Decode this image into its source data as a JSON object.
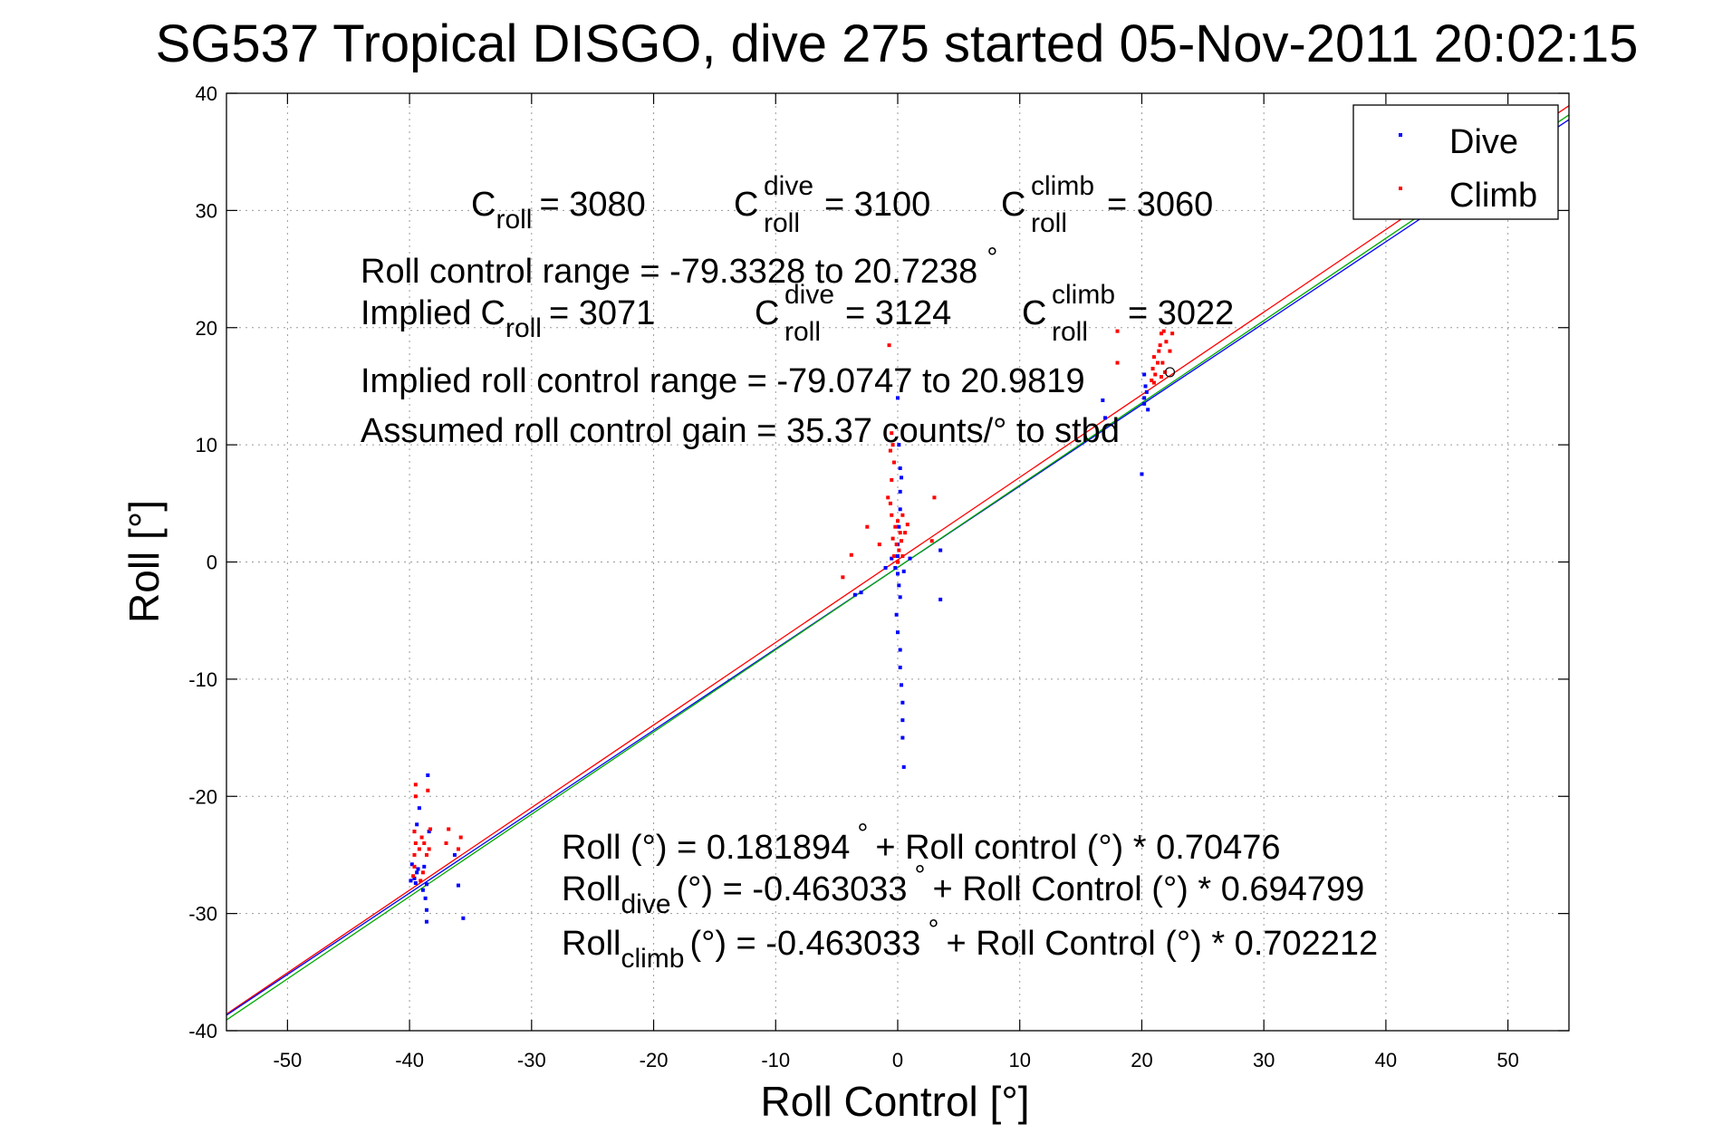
{
  "chart_data": {
    "type": "scatter",
    "title": "SG537 Tropical DISGO, dive 275 started 05-Nov-2011 20:02:15",
    "xlabel": "Roll Control [°]",
    "ylabel": "Roll [°]",
    "xlim": [
      -55,
      55
    ],
    "ylim": [
      -40,
      40
    ],
    "x_ticks": [
      -50,
      -40,
      -30,
      -20,
      -10,
      0,
      10,
      20,
      30,
      40,
      50
    ],
    "y_ticks": [
      -40,
      -30,
      -20,
      -10,
      0,
      10,
      20,
      30,
      40
    ],
    "grid": true,
    "legend_position": "top-right",
    "colors": {
      "dive": "#0000ff",
      "climb": "#ff0000",
      "fit": "#00aa00"
    },
    "series": [
      {
        "name": "Dive",
        "color": "#0000ff",
        "points": [
          [
            -39.6,
            -27.0
          ],
          [
            -39.4,
            -26.5
          ],
          [
            -39.5,
            -27.4
          ],
          [
            -39.3,
            -26.2
          ],
          [
            -39.8,
            -25.8
          ],
          [
            -39.6,
            -23.0
          ],
          [
            -39.4,
            -22.4
          ],
          [
            -39.2,
            -21.0
          ],
          [
            -38.9,
            -28.0
          ],
          [
            -38.7,
            -28.7
          ],
          [
            -38.6,
            -29.7
          ],
          [
            -38.6,
            -30.7
          ],
          [
            -38.6,
            -27.5
          ],
          [
            -38.4,
            -23.0
          ],
          [
            -38.5,
            -18.2
          ],
          [
            -38.8,
            -26.0
          ],
          [
            -36.3,
            -25.0
          ],
          [
            -36.0,
            -27.6
          ],
          [
            -35.6,
            -30.4
          ],
          [
            -39.9,
            -27.2
          ],
          [
            0.0,
            14.0
          ],
          [
            0.1,
            10.0
          ],
          [
            0.2,
            8.0
          ],
          [
            0.3,
            7.2
          ],
          [
            0.2,
            6.0
          ],
          [
            0.2,
            4.5
          ],
          [
            0.1,
            3.0
          ],
          [
            0.0,
            1.5
          ],
          [
            0.0,
            0.5
          ],
          [
            -0.2,
            -0.5
          ],
          [
            0.0,
            -1.0
          ],
          [
            0.1,
            -2.0
          ],
          [
            0.2,
            -3.0
          ],
          [
            -0.1,
            -4.5
          ],
          [
            0.0,
            -6.0
          ],
          [
            0.2,
            -7.5
          ],
          [
            0.2,
            -9.0
          ],
          [
            0.3,
            -10.5
          ],
          [
            0.4,
            -12.0
          ],
          [
            0.4,
            -13.5
          ],
          [
            0.4,
            -15.0
          ],
          [
            0.5,
            -17.5
          ],
          [
            -0.5,
            0.3
          ],
          [
            0.5,
            -0.8
          ],
          [
            -3.5,
            -2.8
          ],
          [
            -3.0,
            -2.6
          ],
          [
            3.5,
            1.0
          ],
          [
            3.5,
            -3.2
          ],
          [
            -1.0,
            -0.5
          ],
          [
            1.0,
            0.3
          ],
          [
            16.8,
            13.8
          ],
          [
            17.0,
            12.3
          ],
          [
            20.2,
            13.5
          ],
          [
            20.2,
            14.0
          ],
          [
            20.3,
            15.0
          ],
          [
            20.2,
            16.0
          ],
          [
            20.4,
            14.5
          ],
          [
            20.0,
            7.5
          ],
          [
            20.5,
            13.0
          ]
        ]
      },
      {
        "name": "Climb",
        "color": "#ff0000",
        "points": [
          [
            -39.5,
            -19.0
          ],
          [
            -39.5,
            -20.0
          ],
          [
            -39.6,
            -23.0
          ],
          [
            -39.5,
            -24.0
          ],
          [
            -39.6,
            -25.0
          ],
          [
            -39.6,
            -26.0
          ],
          [
            -39.7,
            -26.8
          ],
          [
            -39.2,
            -24.5
          ],
          [
            -39.0,
            -23.5
          ],
          [
            -38.8,
            -24.0
          ],
          [
            -38.6,
            -25.0
          ],
          [
            -38.5,
            -19.5
          ],
          [
            -38.4,
            -24.5
          ],
          [
            -38.3,
            -22.8
          ],
          [
            -37.0,
            -24.0
          ],
          [
            -36.8,
            -22.8
          ],
          [
            -36.0,
            -24.5
          ],
          [
            -35.8,
            -23.5
          ],
          [
            -38.9,
            -26.5
          ],
          [
            -39.1,
            -27.2
          ],
          [
            -0.7,
            18.5
          ],
          [
            -0.5,
            11.0
          ],
          [
            -0.4,
            10.0
          ],
          [
            -0.3,
            8.5
          ],
          [
            -0.5,
            7.0
          ],
          [
            -0.6,
            5.0
          ],
          [
            -0.5,
            4.0
          ],
          [
            0.0,
            3.5
          ],
          [
            -0.2,
            3.0
          ],
          [
            0.2,
            2.5
          ],
          [
            -0.4,
            2.0
          ],
          [
            0.3,
            1.8
          ],
          [
            -0.1,
            1.5
          ],
          [
            0.1,
            1.0
          ],
          [
            -0.3,
            0.5
          ],
          [
            0.0,
            0.0
          ],
          [
            0.4,
            0.5
          ],
          [
            0.6,
            2.5
          ],
          [
            0.8,
            3.2
          ],
          [
            -1.5,
            1.5
          ],
          [
            -3.8,
            0.6
          ],
          [
            -4.5,
            -1.3
          ],
          [
            2.8,
            1.8
          ],
          [
            3.0,
            5.5
          ],
          [
            -0.8,
            5.5
          ],
          [
            -0.6,
            9.5
          ],
          [
            0.4,
            4.0
          ],
          [
            -2.5,
            3.0
          ],
          [
            18.0,
            19.7
          ],
          [
            18.0,
            17.0
          ],
          [
            20.8,
            15.5
          ],
          [
            20.9,
            16.5
          ],
          [
            21.0,
            17.5
          ],
          [
            21.1,
            16.0
          ],
          [
            21.3,
            17.0
          ],
          [
            21.4,
            18.0
          ],
          [
            21.5,
            18.5
          ],
          [
            21.6,
            19.5
          ],
          [
            21.8,
            19.7
          ],
          [
            21.7,
            17.0
          ],
          [
            21.9,
            16.2
          ],
          [
            21.6,
            15.8
          ],
          [
            21.0,
            15.3
          ],
          [
            22.3,
            18.0
          ],
          [
            22.5,
            19.5
          ],
          [
            22.0,
            18.8
          ]
        ]
      }
    ],
    "fit_lines": [
      {
        "name": "Roll fit",
        "color": "#ff0000",
        "intercept": 0.181894,
        "slope": 0.70476
      },
      {
        "name": "Dive fit",
        "color": "#0000ff",
        "intercept": -0.463033,
        "slope": 0.694799
      },
      {
        "name": "Climb fit",
        "color": "#00aa00",
        "intercept": -0.463033,
        "slope": 0.702212
      }
    ],
    "marker_point": [
      22.3,
      16.2
    ],
    "annotations": {
      "c_roll_value": "= 3080",
      "c_dive_value": "= 3100",
      "c_climb_value": "= 3060",
      "roll_range": "Roll control range = -79.3328 to 20.7238",
      "implied_c_roll_value": "= 3071",
      "implied_c_dive_value": "= 3124",
      "implied_c_climb_value": "= 3022",
      "implied_range": "Implied roll control range = -79.0747 to 20.9819",
      "gain": "Assumed roll control gain = 35.37 counts/° to stbd",
      "eq_roll_lead": "Roll (°) = 0.181894",
      "eq_roll_tail": "+ Roll control (°) * 0.70476",
      "eq_dive_lead": "(°) = -0.463033",
      "eq_dive_tail": "+ Roll Control (°) * 0.694799",
      "eq_climb_lead": "(°) = -0.463033",
      "eq_climb_tail": "+ Roll Control (°) * 0.702212",
      "C": "C",
      "roll_sub": "roll",
      "dive_sup": "dive",
      "climb_sup": "climb",
      "Roll": "Roll",
      "dive_sub": "dive",
      "climb_sub": "climb",
      "implied_prefix": "Implied",
      "degree": "°"
    }
  }
}
